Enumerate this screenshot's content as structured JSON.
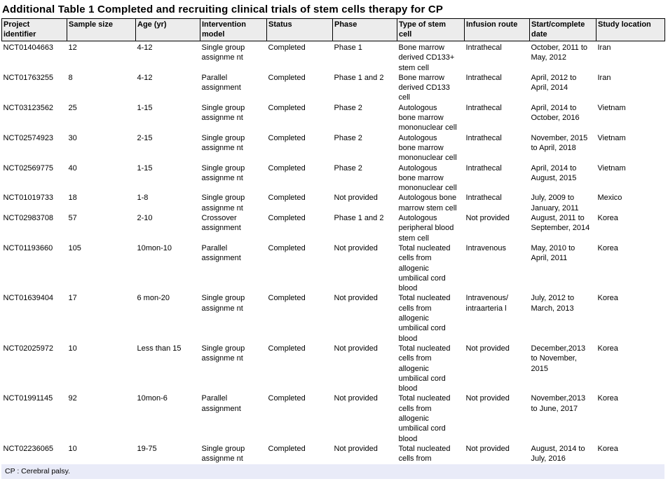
{
  "title": "Additional Table 1 Completed and recruiting clinical trials of stem cells therapy for CP",
  "footnote": "CP : Cerebral palsy.",
  "colors": {
    "header_background": "#ececec",
    "footnote_background": "#e9ebf8",
    "border": "#000000",
    "text": "#000000"
  },
  "table": {
    "column_keys": [
      "project-identifier",
      "sample-size",
      "age",
      "intervention-model",
      "status",
      "phase",
      "stem-cell-type",
      "infusion-route",
      "date",
      "study-location"
    ],
    "columns": [
      "Project\nidentifier",
      "Sample size",
      "Age (yr)",
      "Intervention\nmodel",
      "Status",
      "Phase",
      "Type of stem\ncell",
      "Infusion route",
      "Start/complete\ndate",
      "Study location"
    ],
    "rows": [
      [
        "NCT01404663",
        "12",
        "4-12",
        "Single group\nassignme nt",
        "Completed",
        "Phase 1",
        "Bone marrow\nderived CD133+\nstem cell",
        "Intrathecal",
        "October, 2011 to\nMay, 2012",
        "Iran"
      ],
      [
        "NCT01763255",
        "8",
        "4-12",
        "Parallel\nassignment",
        "Completed",
        "Phase 1 and 2",
        "Bone marrow\nderived CD133\ncell",
        "Intrathecal",
        "April, 2012 to\nApril, 2014",
        "Iran"
      ],
      [
        "NCT03123562",
        "25",
        "1-15",
        "Single group\nassignme nt",
        "Completed",
        "Phase 2",
        "Autologous\nbone marrow\nmononuclear cell",
        "Intrathecal",
        "April, 2014 to\nOctober, 2016",
        "Vietnam"
      ],
      [
        "NCT02574923",
        "30",
        "2-15",
        "Single group\nassignme nt",
        "Completed",
        "Phase 2",
        "Autologous\nbone marrow\nmononuclear cell",
        "Intrathecal",
        "November, 2015\nto April, 2018",
        "Vietnam"
      ],
      [
        "NCT02569775",
        "40",
        "1-15",
        "Single group\nassignme nt",
        "Completed",
        "Phase 2",
        "Autologous\nbone marrow\nmononuclear cell",
        "Intrathecal",
        "April, 2014 to\nAugust, 2015",
        "Vietnam"
      ],
      [
        "NCT01019733",
        "18",
        "1-8",
        "Single group\nassignme nt",
        "Completed",
        "Not provided",
        "Autologous bone\nmarrow stem cell",
        "Intrathecal",
        "July, 2009 to\nJanuary, 2011",
        "Mexico"
      ],
      [
        "NCT02983708",
        "57",
        "2-10",
        "Crossover\nassignment",
        "Completed",
        "Phase 1 and 2",
        "Autologous\nperipheral blood\nstem cell",
        "Not provided",
        "August, 2011 to\nSeptember, 2014",
        "Korea"
      ],
      [
        "NCT01193660",
        "105",
        "10mon-10",
        "Parallel\nassignment",
        "Completed",
        "Not provided",
        "Total nucleated\ncells from\nallogenic\numbilical cord\nblood",
        "Intravenous",
        "May, 2010 to\nApril, 2011",
        "Korea"
      ],
      [
        "NCT01639404",
        "17",
        "6 mon-20",
        "Single group\nassignme nt",
        "Completed",
        "Not provided",
        "Total nucleated\ncells from\nallogenic\numbilical cord\nblood",
        "Intravenous/\nintraarteria l",
        "July, 2012 to\nMarch, 2013",
        "Korea"
      ],
      [
        "NCT02025972",
        "10",
        "Less than 15",
        "Single group\nassignme nt",
        "Completed",
        "Not provided",
        "Total nucleated\ncells from\nallogenic\numbilical cord\nblood",
        "Not provided",
        "December,2013\nto November,\n2015",
        "Korea"
      ],
      [
        "NCT01991145",
        "92",
        "10mon-6",
        "Parallel\nassignment",
        "Completed",
        "Not provided",
        "Total nucleated\ncells from\nallogenic\numbilical cord\nblood",
        "Not provided",
        "November,2013\nto June, 2017",
        "Korea"
      ],
      [
        "NCT02236065",
        "10",
        "19-75",
        "Single group\nassignme nt",
        "Completed",
        "Not provided",
        "Total nucleated\ncells from",
        "Not provided",
        "August, 2014 to\nJuly, 2016",
        "Korea"
      ]
    ]
  }
}
